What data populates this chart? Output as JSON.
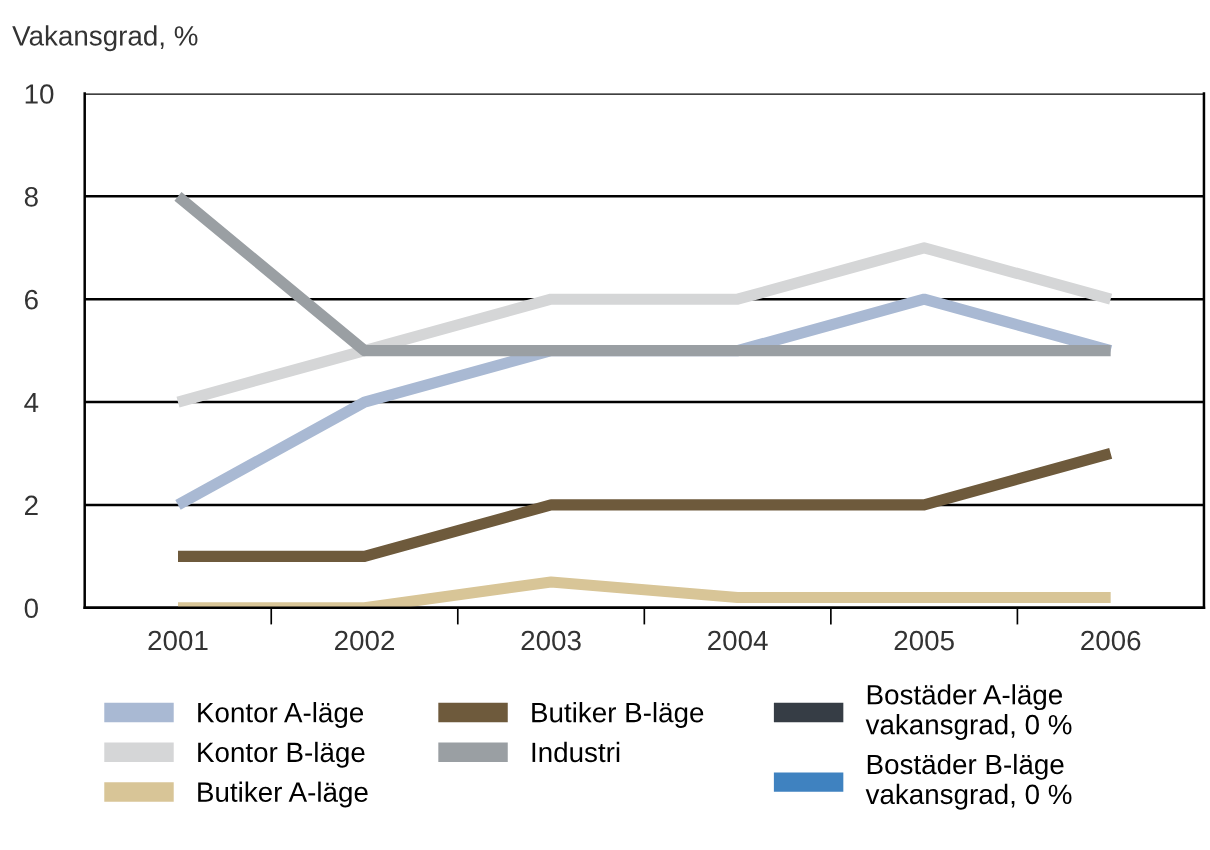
{
  "chart_data": {
    "type": "line",
    "ylabel": "Vakansgrad, %",
    "categories": [
      "2001",
      "2002",
      "2003",
      "2004",
      "2005",
      "2006"
    ],
    "series": [
      {
        "name": "Kontor A-läge",
        "color": "#a9b9d3",
        "values": [
          2,
          4,
          5,
          5,
          6,
          5
        ]
      },
      {
        "name": "Kontor B-läge",
        "color": "#d5d6d7",
        "values": [
          4,
          5,
          6,
          6,
          7,
          6
        ]
      },
      {
        "name": "Butiker A-läge",
        "color": "#d8c597",
        "values": [
          0,
          0,
          0.5,
          0.2,
          0.2,
          0.2
        ]
      },
      {
        "name": "Butiker B-läge",
        "color": "#6e5a3c",
        "values": [
          1,
          1,
          2,
          2,
          2,
          3
        ]
      },
      {
        "name": "Industri",
        "color": "#9a9fa3",
        "values": [
          8,
          5,
          5,
          5,
          5,
          5
        ]
      },
      {
        "name": "Bostäder A-läge\nvakansgrad, 0 %",
        "color": "#363d45",
        "values": [
          null,
          null,
          null,
          null,
          null,
          null
        ]
      },
      {
        "name": "Bostäder B-läge\nvakansgrad, 0 %",
        "color": "#3f82c0",
        "values": [
          null,
          null,
          null,
          null,
          null,
          null
        ]
      }
    ],
    "ylim": [
      0,
      10
    ],
    "yticks": [
      0,
      2,
      4,
      6,
      8,
      10
    ],
    "grid": "y",
    "legend": "bottom",
    "line_style": "solid"
  }
}
